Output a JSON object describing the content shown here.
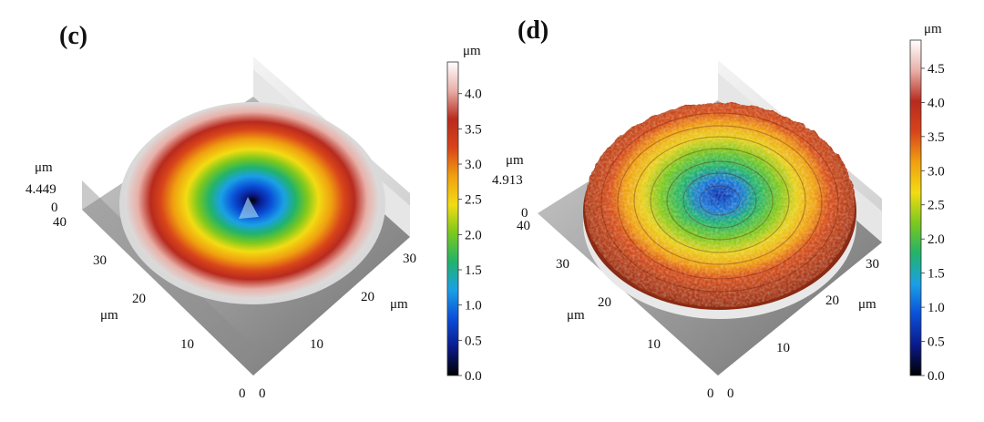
{
  "panels": [
    {
      "id": "c",
      "label": "(c)",
      "z_unit": "μm",
      "z_max_label": "4.449",
      "z_zero_label": "0",
      "left_axis_unit": "μm",
      "left_axis_ticks": [
        "40",
        "30",
        "20",
        "10",
        "0"
      ],
      "right_axis_unit": "μm",
      "right_axis_ticks": [
        "0",
        "10",
        "20",
        "30"
      ],
      "colorbar_unit": "μm",
      "colorbar_ticks": [
        "0.0",
        "0.5",
        "1.0",
        "1.5",
        "2.0",
        "2.5",
        "3.0",
        "3.5",
        "4.0"
      ],
      "colorbar_max": 4.449,
      "surface": "smooth"
    },
    {
      "id": "d",
      "label": "(d)",
      "z_unit": "μm",
      "z_max_label": "4.913",
      "z_zero_label": "0",
      "left_axis_unit": "μm",
      "left_axis_ticks": [
        "40",
        "30",
        "20",
        "10",
        "0"
      ],
      "right_axis_unit": "μm",
      "right_axis_ticks": [
        "0",
        "10",
        "20",
        "30"
      ],
      "colorbar_unit": "μm",
      "colorbar_ticks": [
        "0.0",
        "0.5",
        "1.0",
        "1.5",
        "2.0",
        "2.5",
        "3.0",
        "3.5",
        "4.0",
        "4.5"
      ],
      "colorbar_max": 4.913,
      "surface": "rough"
    }
  ],
  "colors": {
    "colormap": [
      "#000000",
      "#0a1a8c",
      "#0a4fd8",
      "#1aa0e6",
      "#22b36a",
      "#7cc81e",
      "#f2dc12",
      "#f0a010",
      "#d8441a",
      "#b82a1e",
      "#e8b0a8",
      "#ffffff"
    ],
    "base_light": "#e8e8e8",
    "base_dark": "#7a7a7a"
  }
}
